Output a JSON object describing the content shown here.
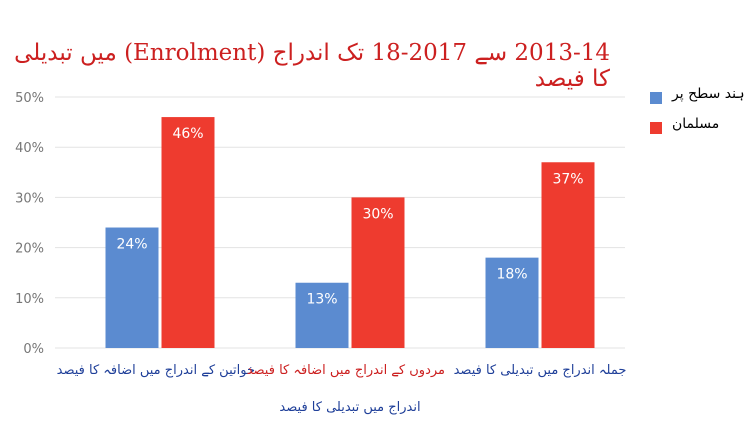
{
  "colors": {
    "title": "#cc2020",
    "series_1": "#5b8bd0",
    "series_2": "#ee3b2f",
    "category_label_1": "#1f3f99",
    "category_label_2": "#cc2020",
    "category_label_3": "#1f3f99",
    "footnote": "#1f3f99",
    "grid": "#e3e3e3",
    "tick": "#777777"
  },
  "chart_data": {
    "type": "bar",
    "title": "2013-14 سے 2017-18 تک اندراج (Enrolment) میں تبدیلی کا فیصد",
    "categories": [
      "خواتین کے اندراج میں اضافہ کا فیصد",
      "مردوں کے اندراج میں اضافہ کا فیصد",
      "جملہ اندراج میں تبدیلی کا فیصد"
    ],
    "series": [
      {
        "name": "کل ہند سطح پر",
        "values": [
          24,
          13,
          18
        ]
      },
      {
        "name": "مسلمان",
        "values": [
          46,
          30,
          37
        ]
      }
    ],
    "data_labels": [
      [
        "24%",
        "13%",
        "18%"
      ],
      [
        "46%",
        "30%",
        "37%"
      ]
    ],
    "yticks": [
      "0%",
      "10%",
      "20%",
      "30%",
      "40%",
      "50%"
    ],
    "ylim": [
      0,
      50
    ],
    "grid": true,
    "legend": "right",
    "footnote": "اندراج میں تبدیلی کا فیصد"
  }
}
